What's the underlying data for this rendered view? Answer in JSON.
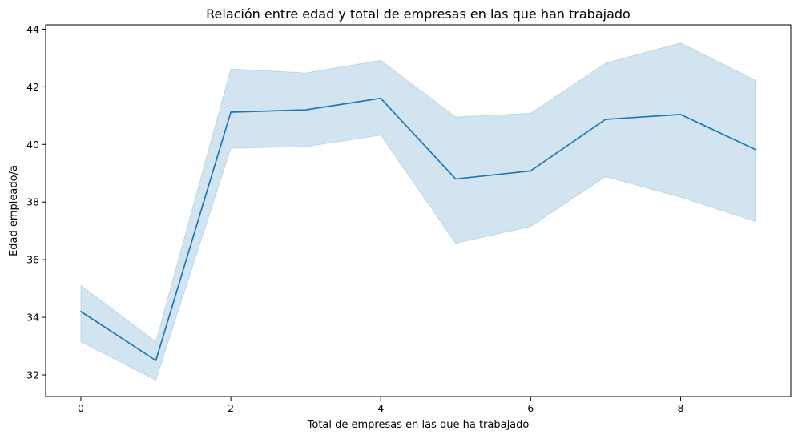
{
  "chart_data": {
    "type": "line",
    "title": "Relación entre edad y total de empresas en las que han trabajado",
    "xlabel": "Total de empresas en las que ha trabajado",
    "ylabel": "Edad empleado/a",
    "x": [
      0,
      1,
      2,
      3,
      4,
      5,
      6,
      7,
      8,
      9
    ],
    "series": [
      {
        "name": "",
        "values": [
          34.2,
          32.5,
          41.12,
          41.2,
          41.6,
          38.8,
          39.08,
          40.87,
          41.04,
          39.82
        ],
        "ci_lower": [
          33.15,
          31.82,
          39.87,
          39.92,
          40.32,
          36.57,
          37.15,
          38.88,
          38.17,
          37.32
        ],
        "ci_upper": [
          35.1,
          33.15,
          42.62,
          42.48,
          42.92,
          40.95,
          41.08,
          42.82,
          43.52,
          42.22
        ],
        "color": "#1f77b4"
      }
    ],
    "xlim": [
      -0.47,
      9.47
    ],
    "ylim": [
      31.25,
      44.15
    ],
    "xticks": [
      0,
      2,
      4,
      6,
      8
    ],
    "yticks": [
      32,
      34,
      36,
      38,
      40,
      42,
      44
    ],
    "grid": false,
    "legend": "none"
  }
}
